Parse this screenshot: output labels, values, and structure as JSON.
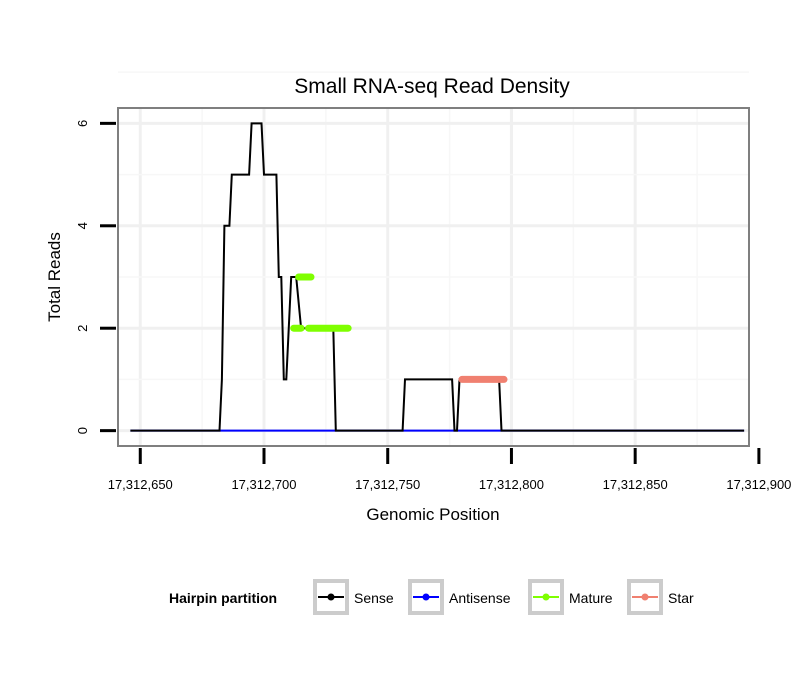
{
  "chart_data": {
    "type": "line",
    "title": "Small RNA-seq Read Density",
    "xlabel": "Genomic Position",
    "ylabel": "Total Reads",
    "xlim": [
      17312641,
      17312896
    ],
    "ylim": [
      -0.3,
      6.3
    ],
    "x_ticks": [
      17312650,
      17312700,
      17312750,
      17312800,
      17312850,
      17312900
    ],
    "x_tick_labels": [
      "17,312,650",
      "17,312,700",
      "17,312,750",
      "17,312,800",
      "17,312,850",
      "17,312,900"
    ],
    "y_ticks": [
      0,
      2,
      4,
      6
    ],
    "y_tick_labels": [
      "0",
      "2",
      "4",
      "6"
    ],
    "grid": true,
    "legend": {
      "title": "Hairpin partition",
      "position": "bottom",
      "entries": [
        {
          "name": "Sense",
          "color": "#000000"
        },
        {
          "name": "Antisense",
          "color": "#0000ff"
        },
        {
          "name": "Mature",
          "color": "#7fff00"
        },
        {
          "name": "Star",
          "color": "#f08070"
        }
      ]
    },
    "series": [
      {
        "name": "Sense",
        "color": "#000000",
        "points": [
          [
            17312646,
            0
          ],
          [
            17312682,
            0
          ],
          [
            17312683,
            1
          ],
          [
            17312684,
            4
          ],
          [
            17312686,
            4
          ],
          [
            17312687,
            5
          ],
          [
            17312694,
            5
          ],
          [
            17312695,
            6
          ],
          [
            17312699,
            6
          ],
          [
            17312700,
            5
          ],
          [
            17312705,
            5
          ],
          [
            17312706,
            3
          ],
          [
            17312707,
            3
          ],
          [
            17312708,
            1
          ],
          [
            17312709,
            1
          ],
          [
            17312711,
            3
          ],
          [
            17312713,
            3
          ],
          [
            17312715,
            2
          ],
          [
            17312728,
            2
          ],
          [
            17312729,
            0
          ],
          [
            17312756,
            0
          ],
          [
            17312757,
            1
          ],
          [
            17312776,
            1
          ],
          [
            17312777,
            0
          ],
          [
            17312778,
            0
          ],
          [
            17312779,
            1
          ],
          [
            17312795,
            1
          ],
          [
            17312796,
            0
          ],
          [
            17312894,
            0
          ]
        ]
      },
      {
        "name": "Antisense",
        "color": "#0000ff",
        "points": [
          [
            17312646,
            0
          ],
          [
            17312894,
            0
          ]
        ]
      },
      {
        "name": "Mature",
        "color": "#7fff00",
        "segments": [
          [
            [
              17312712,
              2
            ],
            [
              17312715,
              2
            ]
          ],
          [
            [
              17312714,
              3
            ],
            [
              17312719,
              3
            ]
          ],
          [
            [
              17312718,
              2
            ],
            [
              17312734,
              2
            ]
          ]
        ]
      },
      {
        "name": "Star",
        "color": "#f08070",
        "segments": [
          [
            [
              17312780,
              1
            ],
            [
              17312797,
              1
            ]
          ]
        ]
      }
    ]
  }
}
